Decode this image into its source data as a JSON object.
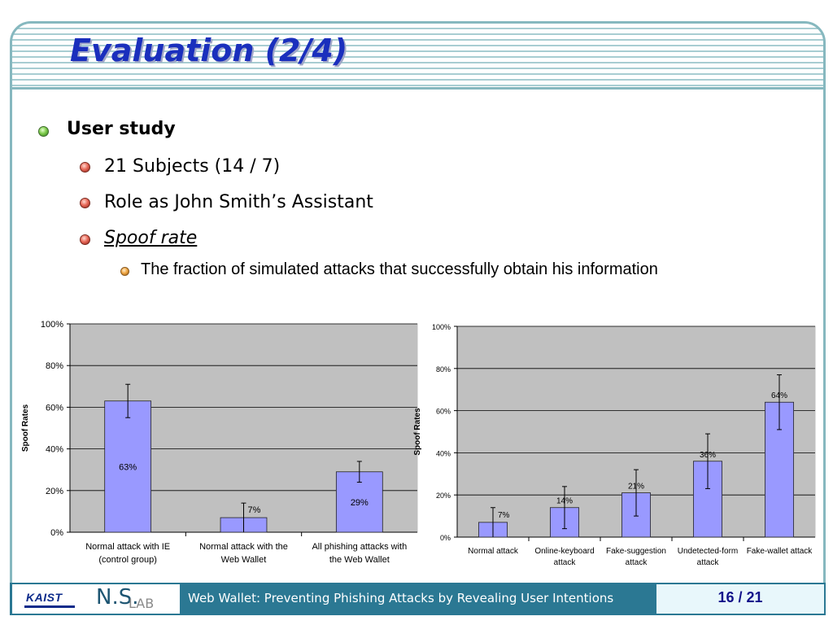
{
  "slide": {
    "title": "Evaluation (2/4)",
    "bullets": {
      "b1": "User study",
      "b2": "21 Subjects (14 / 7)",
      "b3": "Role as John Smith’s Assistant",
      "b4": "Spoof rate",
      "b5": "The fraction of simulated attacks that successfully obtain his information"
    }
  },
  "footer": {
    "kaist": "KAIST",
    "nslab_ns": "N.S.",
    "nslab_lab": "LAB",
    "text": "Web Wallet: Preventing Phishing Attacks by Revealing User Intentions",
    "page": "16 / 21"
  },
  "colors": {
    "title": "#1a2fbd",
    "bar": "#9999ff",
    "plot_bg": "#c0c0c0",
    "footer": "#2b7893"
  },
  "chart_data": [
    {
      "type": "bar",
      "ylabel": "Spoof Rates",
      "ylim": [
        0,
        100
      ],
      "yticks": [
        "0%",
        "20%",
        "40%",
        "60%",
        "80%",
        "100%"
      ],
      "categories": [
        [
          "Normal attack with IE",
          "(control group)"
        ],
        [
          "Normal attack with the",
          "Web Wallet"
        ],
        [
          "All phishing attacks with",
          "the Web Wallet"
        ]
      ],
      "values": [
        63,
        7,
        29
      ],
      "labels": [
        "63%",
        "7%",
        "29%"
      ],
      "error_bars": [
        [
          55,
          71
        ],
        [
          0,
          14
        ],
        [
          24,
          34
        ]
      ],
      "grid": true
    },
    {
      "type": "bar",
      "ylabel": "Spoof Rates",
      "ylim": [
        0,
        100
      ],
      "yticks": [
        "0%",
        "20%",
        "40%",
        "60%",
        "80%",
        "100%"
      ],
      "categories": [
        [
          "Normal attack"
        ],
        [
          "Online-keyboard",
          "attack"
        ],
        [
          "Fake-suggestion",
          "attack"
        ],
        [
          "Undetected-form",
          "attack"
        ],
        [
          "Fake-wallet attack"
        ]
      ],
      "values": [
        7,
        14,
        21,
        36,
        64
      ],
      "labels": [
        "7%",
        "14%",
        "21%",
        "36%",
        "64%"
      ],
      "error_bars": [
        [
          0,
          14
        ],
        [
          4,
          24
        ],
        [
          10,
          32
        ],
        [
          23,
          49
        ],
        [
          51,
          77
        ]
      ],
      "grid": true
    }
  ]
}
